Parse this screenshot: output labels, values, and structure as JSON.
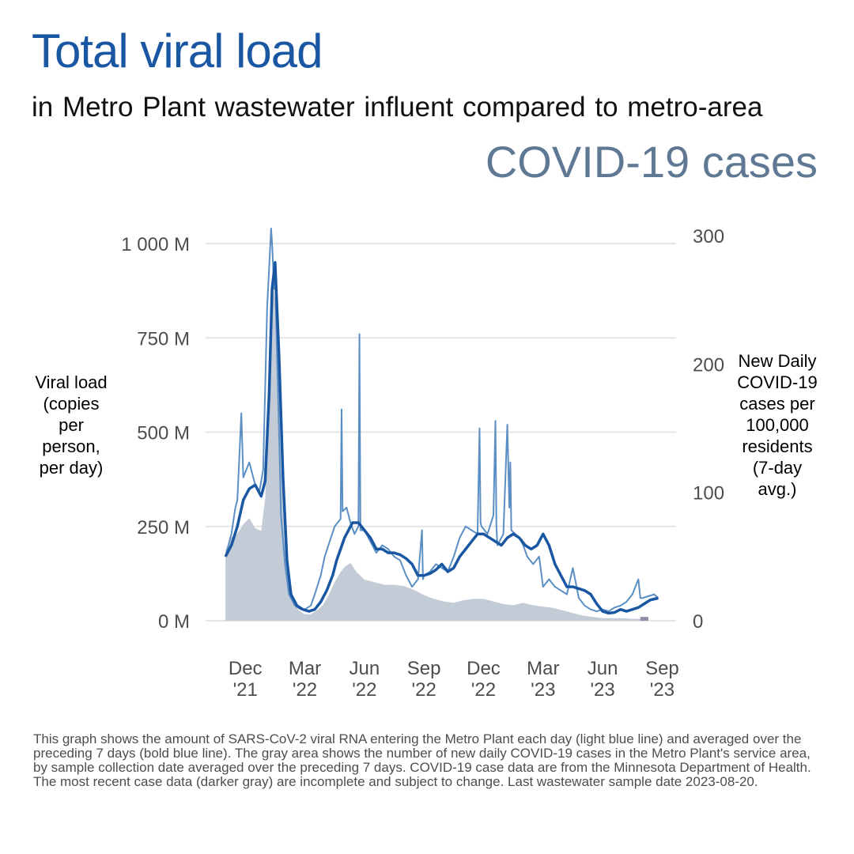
{
  "header": {
    "title": "Total viral load",
    "subtitle": "in Metro Plant  wastewater influent  compared to metro-area",
    "subtitle_2": "COVID-19 cases"
  },
  "axes": {
    "left_label": "Viral load\n(copies\nper\nperson,\nper day)",
    "right_label": "New Daily\nCOVID-19\ncases per\n100,000\nresidents\n(7-day\navg.)"
  },
  "caption": "This graph shows the amount of SARS-CoV-2 viral RNA entering the Metro Plant each day (light blue line) and averaged over the preceding 7 days (bold blue line). The gray area shows the number of new daily COVID-19 cases in the Metro Plant's service area, by sample collection date averaged over the preceding 7 days. COVID-19 case data are from the Minnesota Department of Health. The most recent case data (darker gray) are incomplete and subject to change. Last wastewater sample date 2023-08-20.",
  "colors": {
    "daily_line": "#5b8fc4",
    "avg_line": "#1a57a3",
    "cases_area": "#c3ccd6",
    "cases_incomplete": "#8e8ea6",
    "grid": "#e6e6e6"
  },
  "chart_data": {
    "type": "line",
    "x_unit": "months since 2021-11-01",
    "x_range": [
      -1,
      22.7
    ],
    "x_ticks": [
      {
        "x": 1,
        "label": [
          "Dec",
          "'21"
        ]
      },
      {
        "x": 4,
        "label": [
          "Mar",
          "'22"
        ]
      },
      {
        "x": 7,
        "label": [
          "Jun",
          "'22"
        ]
      },
      {
        "x": 10,
        "label": [
          "Sep",
          "'22"
        ]
      },
      {
        "x": 13,
        "label": [
          "Dec",
          "'22"
        ]
      },
      {
        "x": 16,
        "label": [
          "Mar",
          "'23"
        ]
      },
      {
        "x": 19,
        "label": [
          "Jun",
          "'23"
        ]
      },
      {
        "x": 22,
        "label": [
          "Sep",
          "'23"
        ]
      }
    ],
    "y_left": {
      "label": "Viral load (copies per person, per day)",
      "range": [
        0,
        1000
      ],
      "unit": "million copies",
      "ticks": [
        0,
        250,
        500,
        750,
        1000
      ],
      "tick_labels": [
        "0 M",
        "250 M",
        "500 M",
        "750 M",
        "1 000 M"
      ]
    },
    "y_right": {
      "label": "New Daily COVID-19 cases per 100,000 residents (7-day avg.)",
      "range": [
        0,
        300
      ],
      "ticks": [
        0,
        100,
        200,
        300
      ],
      "tick_labels": [
        "0",
        "100",
        "200",
        "300"
      ]
    },
    "series": [
      {
        "name": "Daily viral load",
        "axis": "left",
        "x": [
          0.0,
          0.3,
          0.5,
          0.6,
          0.8,
          0.9,
          1.2,
          1.5,
          1.7,
          1.9,
          2.1,
          2.3,
          2.35,
          2.45,
          2.5,
          2.6,
          2.7,
          2.8,
          3.0,
          3.2,
          3.5,
          3.8,
          4.0,
          4.3,
          4.5,
          4.8,
          5.0,
          5.5,
          5.8,
          5.85,
          5.9,
          6.1,
          6.3,
          6.5,
          6.7,
          6.75,
          6.8,
          7.0,
          7.3,
          7.6,
          7.9,
          8.2,
          8.5,
          8.8,
          9.1,
          9.4,
          9.7,
          9.9,
          9.95,
          10.0,
          10.3,
          10.6,
          10.9,
          11.2,
          11.5,
          11.8,
          12.1,
          12.4,
          12.7,
          12.8,
          12.85,
          12.9,
          13.2,
          13.5,
          13.6,
          13.65,
          13.7,
          14.0,
          14.2,
          14.3,
          14.35,
          14.4,
          14.6,
          14.8,
          15.0,
          15.2,
          15.5,
          15.8,
          16.0,
          16.3,
          16.6,
          16.9,
          17.2,
          17.5,
          17.8,
          18.1,
          18.4,
          18.7,
          19.0,
          19.3,
          19.6,
          19.9,
          20.2,
          20.5,
          20.8,
          20.9,
          21.0,
          21.3,
          21.6,
          21.8
        ],
        "values": [
          170,
          230,
          300,
          320,
          550,
          380,
          420,
          360,
          340,
          400,
          830,
          1040,
          1000,
          880,
          920,
          700,
          500,
          280,
          150,
          70,
          40,
          30,
          30,
          40,
          70,
          120,
          170,
          250,
          270,
          560,
          290,
          300,
          260,
          230,
          250,
          760,
          240,
          240,
          210,
          180,
          200,
          190,
          170,
          160,
          120,
          90,
          110,
          240,
          110,
          120,
          130,
          150,
          140,
          130,
          170,
          220,
          250,
          240,
          230,
          510,
          260,
          250,
          230,
          280,
          530,
          250,
          200,
          230,
          520,
          300,
          420,
          240,
          230,
          220,
          200,
          170,
          150,
          170,
          90,
          110,
          90,
          80,
          70,
          140,
          60,
          40,
          30,
          25,
          30,
          25,
          35,
          40,
          50,
          70,
          110,
          60,
          60,
          65,
          70,
          60
        ]
      },
      {
        "name": "7-day average viral load",
        "axis": "left",
        "x": [
          0.0,
          0.3,
          0.6,
          0.9,
          1.2,
          1.5,
          1.8,
          2.0,
          2.2,
          2.35,
          2.5,
          2.7,
          2.9,
          3.1,
          3.3,
          3.6,
          3.9,
          4.2,
          4.5,
          4.8,
          5.1,
          5.4,
          5.6,
          5.8,
          6.0,
          6.2,
          6.4,
          6.7,
          7.0,
          7.3,
          7.6,
          7.9,
          8.2,
          8.5,
          8.8,
          9.1,
          9.4,
          9.7,
          10.0,
          10.3,
          10.6,
          10.9,
          11.2,
          11.5,
          11.8,
          12.1,
          12.4,
          12.7,
          13.0,
          13.3,
          13.6,
          13.9,
          14.2,
          14.5,
          14.8,
          15.1,
          15.4,
          15.7,
          16.0,
          16.3,
          16.6,
          16.9,
          17.2,
          17.5,
          17.8,
          18.1,
          18.4,
          18.7,
          19.0,
          19.3,
          19.6,
          19.9,
          20.2,
          20.5,
          20.8,
          21.1,
          21.4,
          21.8
        ],
        "values": [
          170,
          200,
          250,
          320,
          350,
          360,
          330,
          370,
          600,
          880,
          950,
          700,
          380,
          160,
          70,
          40,
          30,
          25,
          30,
          50,
          80,
          120,
          160,
          190,
          220,
          240,
          260,
          260,
          240,
          220,
          190,
          190,
          180,
          180,
          175,
          165,
          150,
          120,
          120,
          125,
          135,
          150,
          130,
          140,
          170,
          190,
          210,
          230,
          230,
          220,
          210,
          200,
          220,
          230,
          220,
          200,
          190,
          200,
          230,
          200,
          150,
          120,
          90,
          90,
          85,
          80,
          70,
          45,
          25,
          20,
          22,
          30,
          25,
          30,
          35,
          45,
          55,
          60
        ]
      },
      {
        "name": "New daily COVID-19 cases per 100,000 (7-day avg.)",
        "axis": "right",
        "type": "area",
        "x": [
          0.0,
          0.3,
          0.6,
          0.9,
          1.2,
          1.5,
          1.8,
          2.0,
          2.2,
          2.4,
          2.6,
          2.8,
          3.0,
          3.2,
          3.4,
          3.7,
          4.0,
          4.3,
          4.6,
          4.9,
          5.2,
          5.5,
          5.8,
          6.0,
          6.3,
          6.6,
          7.0,
          7.5,
          8.0,
          8.5,
          9.0,
          9.5,
          10.0,
          10.5,
          11.0,
          11.5,
          12.0,
          12.5,
          13.0,
          13.5,
          14.0,
          14.5,
          15.0,
          15.5,
          16.0,
          16.5,
          17.0,
          17.5,
          18.0,
          18.5,
          19.0,
          19.5,
          20.0,
          20.5,
          20.9,
          21.3
        ],
        "values": [
          55,
          65,
          68,
          75,
          80,
          72,
          70,
          95,
          180,
          265,
          230,
          120,
          65,
          30,
          15,
          8,
          5,
          5,
          8,
          12,
          20,
          30,
          38,
          42,
          45,
          38,
          32,
          30,
          28,
          28,
          27,
          24,
          20,
          17,
          15,
          14,
          16,
          17,
          17,
          15,
          13,
          12,
          14,
          12,
          11,
          10,
          8,
          6,
          4,
          3,
          2,
          2,
          2,
          1.5,
          1.5,
          1.5
        ]
      }
    ],
    "incomplete_cases_range": {
      "x": [
        20.9,
        21.3
      ],
      "label": "most recent case data (incomplete)"
    }
  }
}
